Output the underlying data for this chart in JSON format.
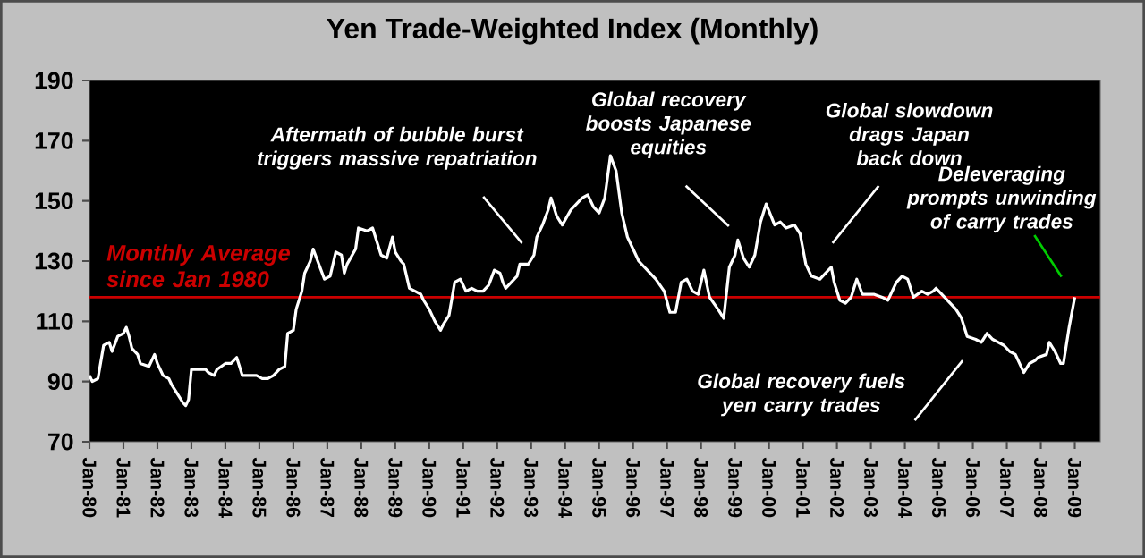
{
  "chart_data": {
    "type": "line",
    "title": "Yen Trade-Weighted Index (Monthly)",
    "x": [
      "1980-01",
      "1980-02",
      "1980-04",
      "1980-06",
      "1980-08",
      "1980-09",
      "1980-11",
      "1981-01",
      "1981-02",
      "1981-03",
      "1981-04",
      "1981-06",
      "1981-07",
      "1981-10",
      "1981-12",
      "1982-01",
      "1982-03",
      "1982-05",
      "1982-06",
      "1982-08",
      "1982-10",
      "1982-11",
      "1982-12",
      "1983-01",
      "1983-04",
      "1983-06",
      "1983-07",
      "1983-09",
      "1983-10",
      "1984-01",
      "1984-03",
      "1984-05",
      "1984-07",
      "1984-12",
      "1985-02",
      "1985-04",
      "1985-06",
      "1985-08",
      "1985-10",
      "1985-11",
      "1986-01",
      "1986-02",
      "1986-04",
      "1986-05",
      "1986-07",
      "1986-08",
      "1986-10",
      "1986-12",
      "1987-02",
      "1987-04",
      "1987-06",
      "1987-07",
      "1987-08",
      "1987-11",
      "1987-12",
      "1988-03",
      "1988-05",
      "1988-06",
      "1988-08",
      "1988-10",
      "1988-12",
      "1989-01",
      "1989-03",
      "1989-04",
      "1989-06",
      "1989-08",
      "1989-10",
      "1989-11",
      "1990-01",
      "1990-03",
      "1990-05",
      "1990-06",
      "1990-08",
      "1990-10",
      "1990-12",
      "1991-02",
      "1991-04",
      "1991-06",
      "1991-08",
      "1991-10",
      "1991-12",
      "1992-02",
      "1992-03",
      "1992-04",
      "1992-06",
      "1992-08",
      "1992-09",
      "1992-12",
      "1993-02",
      "1993-03",
      "1993-05",
      "1993-07",
      "1993-08",
      "1993-10",
      "1993-12",
      "1994-03",
      "1994-05",
      "1994-07",
      "1994-09",
      "1994-11",
      "1995-01",
      "1995-03",
      "1995-05",
      "1995-07",
      "1995-09",
      "1995-11",
      "1996-01",
      "1996-03",
      "1996-05",
      "1996-07",
      "1996-09",
      "1996-12",
      "1997-02",
      "1997-04",
      "1997-06",
      "1997-08",
      "1997-10",
      "1997-12",
      "1998-02",
      "1998-04",
      "1998-07",
      "1998-09",
      "1998-11",
      "1999-01",
      "1999-02",
      "1999-04",
      "1999-06",
      "1999-08",
      "1999-10",
      "1999-12",
      "2000-03",
      "2000-05",
      "2000-07",
      "2000-10",
      "2000-12",
      "2001-02",
      "2001-04",
      "2001-07",
      "2001-09",
      "2001-11",
      "2001-12",
      "2002-02",
      "2002-04",
      "2002-06",
      "2002-08",
      "2002-10",
      "2003-02",
      "2003-05",
      "2003-07",
      "2003-10",
      "2003-12",
      "2004-02",
      "2004-04",
      "2004-07",
      "2004-09",
      "2004-11",
      "2004-12",
      "2005-03",
      "2005-05",
      "2005-07",
      "2005-09",
      "2005-11",
      "2006-02",
      "2006-04",
      "2006-06",
      "2006-08",
      "2006-10",
      "2006-12",
      "2007-02",
      "2007-04",
      "2007-07",
      "2007-09",
      "2007-11",
      "2007-12",
      "2008-03",
      "2008-04",
      "2008-06",
      "2008-08",
      "2008-09",
      "2008-11",
      "2009-01"
    ],
    "series": [
      {
        "color": "#ffffff",
        "values": [
          92,
          90,
          91,
          102,
          103,
          100,
          105,
          106,
          108,
          105,
          101,
          99,
          96,
          95,
          99,
          96,
          92,
          91,
          89,
          86,
          83,
          82,
          84,
          94,
          94,
          94,
          93,
          92,
          94,
          96,
          96,
          98,
          92,
          92,
          91,
          91,
          92,
          94,
          95,
          106,
          107,
          114,
          120,
          126,
          130,
          134,
          129,
          124,
          125,
          133,
          132,
          126,
          129,
          134,
          141,
          140,
          141,
          138,
          132,
          131,
          138,
          133,
          130,
          129,
          121,
          120,
          119,
          117,
          114,
          110,
          107,
          109,
          112,
          123,
          124,
          120,
          121,
          120,
          120,
          122,
          127,
          126,
          123,
          121,
          123,
          125,
          129,
          129,
          132,
          138,
          142,
          147,
          151,
          145,
          142,
          147,
          149,
          151,
          152,
          148,
          146,
          151,
          165,
          160,
          146,
          138,
          134,
          130,
          128,
          126,
          124,
          120,
          113,
          113,
          123,
          124,
          120,
          119,
          127,
          118,
          114,
          111,
          128,
          132,
          137,
          131,
          128,
          132,
          143,
          149,
          142,
          143,
          141,
          142,
          139,
          129,
          125,
          124,
          126,
          128,
          123,
          117,
          116,
          118,
          124,
          119,
          119,
          118,
          117,
          123,
          125,
          124,
          118,
          120,
          119,
          120,
          121,
          118,
          116,
          114,
          111,
          105,
          104,
          103,
          106,
          104,
          103,
          102,
          100,
          99,
          93,
          96,
          97,
          98,
          99,
          103,
          100,
          96,
          96,
          108,
          118
        ]
      }
    ],
    "xlim": [
      "1980-01",
      "2009-10"
    ],
    "ylim": [
      70,
      190
    ],
    "xticks": [
      {
        "value": "1980-01",
        "label": "Jan-80"
      },
      {
        "value": "1981-01",
        "label": "Jan-81"
      },
      {
        "value": "1982-01",
        "label": "Jan-82"
      },
      {
        "value": "1983-01",
        "label": "Jan-83"
      },
      {
        "value": "1984-01",
        "label": "Jan-84"
      },
      {
        "value": "1985-01",
        "label": "Jan-85"
      },
      {
        "value": "1986-01",
        "label": "Jan-86"
      },
      {
        "value": "1987-01",
        "label": "Jan-87"
      },
      {
        "value": "1988-01",
        "label": "Jan-88"
      },
      {
        "value": "1989-01",
        "label": "Jan-89"
      },
      {
        "value": "1990-01",
        "label": "Jan-90"
      },
      {
        "value": "1991-01",
        "label": "Jan-91"
      },
      {
        "value": "1992-01",
        "label": "Jan-92"
      },
      {
        "value": "1993-01",
        "label": "Jan-93"
      },
      {
        "value": "1994-01",
        "label": "Jan-94"
      },
      {
        "value": "1995-01",
        "label": "Jan-95"
      },
      {
        "value": "1996-01",
        "label": "Jan-96"
      },
      {
        "value": "1997-01",
        "label": "Jan-97"
      },
      {
        "value": "1998-01",
        "label": "Jan-98"
      },
      {
        "value": "1999-01",
        "label": "Jan-99"
      },
      {
        "value": "2000-01",
        "label": "Jan-00"
      },
      {
        "value": "2001-01",
        "label": "Jan-01"
      },
      {
        "value": "2002-01",
        "label": "Jan-02"
      },
      {
        "value": "2003-01",
        "label": "Jan-03"
      },
      {
        "value": "2004-01",
        "label": "Jan-04"
      },
      {
        "value": "2005-01",
        "label": "Jan-05"
      },
      {
        "value": "2006-01",
        "label": "Jan-06"
      },
      {
        "value": "2007-01",
        "label": "Jan-07"
      },
      {
        "value": "2008-01",
        "label": "Jan-08"
      },
      {
        "value": "2009-01",
        "label": "Jan-09"
      }
    ],
    "yticks": [
      70,
      90,
      110,
      130,
      150,
      170,
      190
    ],
    "ref_lines": [
      {
        "axis": "y",
        "value": 118,
        "label": "Monthly Average since Jan 1980",
        "color": "#cc0000"
      }
    ],
    "annotations": [
      "Aftermath of bubble burst triggers massive repatriation",
      "Global recovery boosts Japanese equities",
      "Global slowdown drags Japan back down",
      "Deleveraging prompts unwinding of carry trades",
      "Global recovery fuels yen carry trades"
    ]
  }
}
